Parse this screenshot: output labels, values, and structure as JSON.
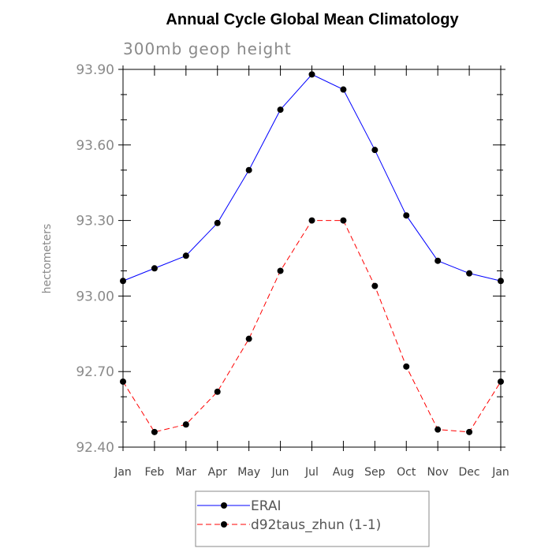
{
  "chart_data": {
    "type": "line",
    "title": "Annual Cycle Global Mean Climatology",
    "subtitle": "300mb geop height",
    "ylabel": "hectometers",
    "xlabel": "",
    "categories": [
      "Jan",
      "Feb",
      "Mar",
      "Apr",
      "May",
      "Jun",
      "Jul",
      "Aug",
      "Sep",
      "Oct",
      "Nov",
      "Dec",
      "Jan"
    ],
    "ylim": [
      92.4,
      93.9
    ],
    "yticks": [
      "92.40",
      "92.70",
      "93.00",
      "93.30",
      "93.60",
      "93.90"
    ],
    "grid": false,
    "legend_position": "bottom",
    "series": [
      {
        "name": "ERAI",
        "color": "#0000ff",
        "style": "solid",
        "values": [
          93.06,
          93.11,
          93.16,
          93.29,
          93.5,
          93.74,
          93.88,
          93.82,
          93.58,
          93.32,
          93.14,
          93.09,
          93.06
        ]
      },
      {
        "name": "d92taus_zhun (1-1)",
        "color": "#ff0000",
        "style": "dashed",
        "values": [
          92.66,
          92.46,
          92.49,
          92.62,
          92.83,
          93.1,
          93.3,
          93.3,
          93.04,
          92.72,
          92.47,
          92.46,
          92.66
        ]
      }
    ]
  }
}
